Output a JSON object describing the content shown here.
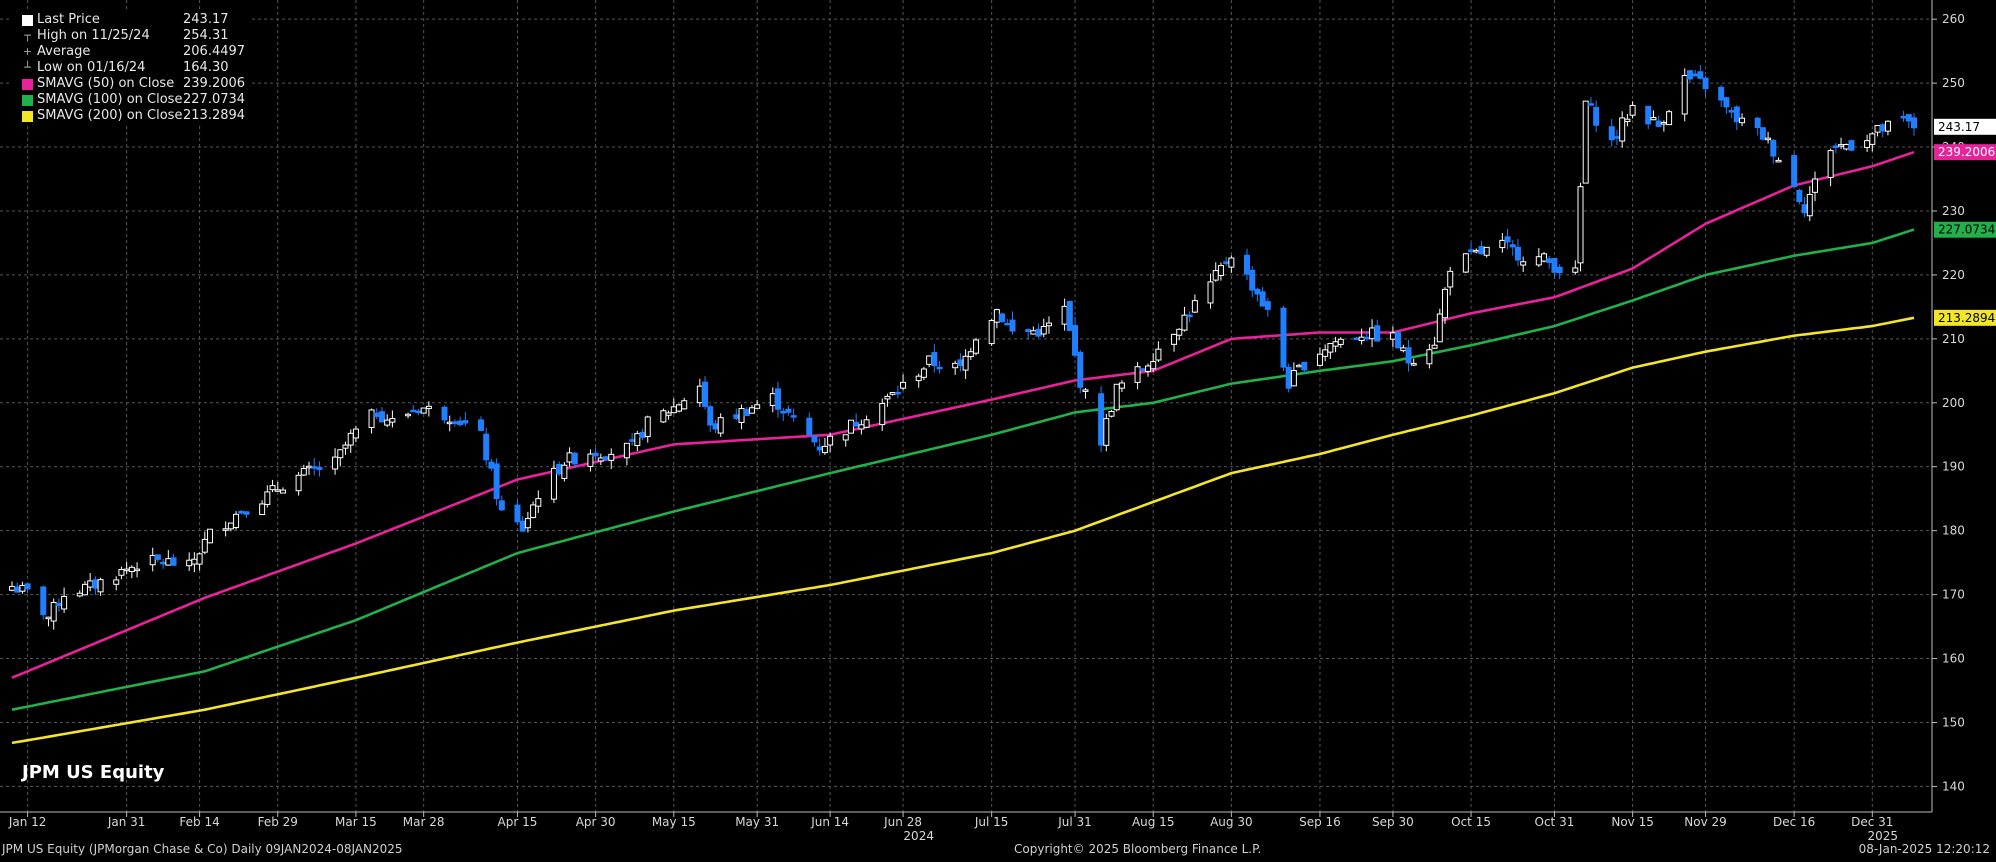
{
  "chart_data": {
    "type": "candlestick",
    "ticker_label": "JPM US Equity",
    "x_tick_labels": [
      "Jan 12",
      "Jan 31",
      "Feb 14",
      "Feb 29",
      "Mar 15",
      "Mar 28",
      "Apr 15",
      "Apr 30",
      "May 15",
      "May 31",
      "Jun 14",
      "Jun 28",
      "Jul 15",
      "Jul 31",
      "Aug 15",
      "Aug 30",
      "Sep 16",
      "Sep 30",
      "Oct 15",
      "Oct 31",
      "Nov 15",
      "Nov 29",
      "Dec 16",
      "Dec 31"
    ],
    "x_tick_dates": [
      "2024-01-12",
      "2024-01-31",
      "2024-02-14",
      "2024-02-29",
      "2024-03-15",
      "2024-03-28",
      "2024-04-15",
      "2024-04-30",
      "2024-05-15",
      "2024-05-31",
      "2024-06-14",
      "2024-06-28",
      "2024-07-15",
      "2024-07-31",
      "2024-08-15",
      "2024-08-30",
      "2024-09-16",
      "2024-09-30",
      "2024-10-15",
      "2024-10-31",
      "2024-11-15",
      "2024-11-29",
      "2024-12-16",
      "2024-12-31"
    ],
    "year_labels": [
      {
        "label": "2024",
        "date": "2024-07-01"
      },
      {
        "label": "2025",
        "date": "2025-01-02"
      }
    ],
    "x_range": [
      "2024-01-09",
      "2025-01-08"
    ],
    "ylim": [
      136,
      263
    ],
    "y_ticks": [
      140,
      150,
      160,
      170,
      180,
      190,
      200,
      210,
      220,
      230,
      240,
      250,
      260
    ],
    "grid": true,
    "legend": {
      "position": "top-left",
      "entries": [
        {
          "name": "Last Price",
          "value": "243.17",
          "color": "#ffffff",
          "marker": "square"
        },
        {
          "name": "High on 11/25/24",
          "value": "254.31",
          "marker": "high"
        },
        {
          "name": "Average",
          "value": "206.4497",
          "marker": "average"
        },
        {
          "name": "Low on 01/16/24",
          "value": "164.30",
          "marker": "low"
        },
        {
          "name": "SMAVG (50)  on Close",
          "value": "239.2006",
          "color": "#e8229b",
          "marker": "square"
        },
        {
          "name": "SMAVG (100)  on Close",
          "value": "227.0734",
          "color": "#21b04b",
          "marker": "square"
        },
        {
          "name": "SMAVG (200)  on Close",
          "value": "213.2894",
          "color": "#f3e629",
          "marker": "square"
        }
      ]
    },
    "close_series": [
      [
        "2024-01-09",
        171.3
      ],
      [
        "2024-01-11",
        170.6
      ],
      [
        "2024-01-12",
        170.3
      ],
      [
        "2024-01-16",
        166.5
      ],
      [
        "2024-01-19",
        170.2
      ],
      [
        "2024-01-24",
        171.2
      ],
      [
        "2024-01-29",
        173.2
      ],
      [
        "2024-02-02",
        174.8
      ],
      [
        "2024-02-07",
        175.3
      ],
      [
        "2024-02-12",
        174.3
      ],
      [
        "2024-02-16",
        179.5
      ],
      [
        "2024-02-22",
        183.2
      ],
      [
        "2024-02-27",
        185.5
      ],
      [
        "2024-03-01",
        187.3
      ],
      [
        "2024-03-06",
        189.2
      ],
      [
        "2024-03-11",
        190.6
      ],
      [
        "2024-03-14",
        194.6
      ],
      [
        "2024-03-19",
        198.6
      ],
      [
        "2024-03-22",
        197.0
      ],
      [
        "2024-03-27",
        199.4
      ],
      [
        "2024-04-01",
        198.2
      ],
      [
        "2024-04-03",
        197.8
      ],
      [
        "2024-04-08",
        194.7
      ],
      [
        "2024-04-12",
        182.8
      ],
      [
        "2024-04-16",
        180.3
      ],
      [
        "2024-04-19",
        185.8
      ],
      [
        "2024-04-24",
        190.8
      ],
      [
        "2024-04-29",
        192.4
      ],
      [
        "2024-05-02",
        192.2
      ],
      [
        "2024-05-07",
        193.0
      ],
      [
        "2024-05-10",
        196.8
      ],
      [
        "2024-05-15",
        199.3
      ],
      [
        "2024-05-20",
        202.8
      ],
      [
        "2024-05-22",
        196.0
      ],
      [
        "2024-05-28",
        198.6
      ],
      [
        "2024-06-03",
        200.8
      ],
      [
        "2024-06-07",
        197.2
      ],
      [
        "2024-06-12",
        193.2
      ],
      [
        "2024-06-17",
        195.9
      ],
      [
        "2024-06-24",
        199.9
      ],
      [
        "2024-06-28",
        202.6
      ],
      [
        "2024-07-03",
        206.4
      ],
      [
        "2024-07-09",
        205.3
      ],
      [
        "2024-07-12",
        210.6
      ],
      [
        "2024-07-16",
        214.6
      ],
      [
        "2024-07-19",
        211.0
      ],
      [
        "2024-07-25",
        211.3
      ],
      [
        "2024-07-29",
        214.6
      ],
      [
        "2024-08-01",
        203.4
      ],
      [
        "2024-08-05",
        194.2
      ],
      [
        "2024-08-08",
        202.2
      ],
      [
        "2024-08-13",
        205.4
      ],
      [
        "2024-08-16",
        208.6
      ],
      [
        "2024-08-21",
        213.4
      ],
      [
        "2024-08-26",
        218.4
      ],
      [
        "2024-08-30",
        223.4
      ],
      [
        "2024-09-04",
        217.2
      ],
      [
        "2024-09-06",
        214.0
      ],
      [
        "2024-09-10",
        203.0
      ],
      [
        "2024-09-13",
        206.2
      ],
      [
        "2024-09-18",
        209.3
      ],
      [
        "2024-09-24",
        210.9
      ],
      [
        "2024-09-30",
        210.1
      ],
      [
        "2024-10-03",
        206.6
      ],
      [
        "2024-10-08",
        209.7
      ],
      [
        "2024-10-11",
        221.4
      ],
      [
        "2024-10-16",
        223.2
      ],
      [
        "2024-10-21",
        224.6
      ],
      [
        "2024-10-25",
        223.0
      ],
      [
        "2024-10-29",
        222.4
      ],
      [
        "2024-11-01",
        221.0
      ],
      [
        "2024-11-04",
        220.2
      ],
      [
        "2024-11-06",
        247.0
      ],
      [
        "2024-11-11",
        240.7
      ],
      [
        "2024-11-15",
        246.4
      ],
      [
        "2024-11-20",
        243.3
      ],
      [
        "2024-11-25",
        250.8
      ],
      [
        "2024-11-29",
        249.7
      ],
      [
        "2024-12-04",
        245.0
      ],
      [
        "2024-12-10",
        241.8
      ],
      [
        "2024-12-13",
        238.4
      ],
      [
        "2024-12-18",
        230.7
      ],
      [
        "2024-12-23",
        240.0
      ],
      [
        "2024-12-27",
        240.5
      ],
      [
        "2025-01-02",
        242.8
      ],
      [
        "2025-01-06",
        244.0
      ],
      [
        "2025-01-08",
        243.2
      ]
    ],
    "sma50": [
      [
        "2024-01-09",
        157.0
      ],
      [
        "2024-02-15",
        169.5
      ],
      [
        "2024-03-15",
        178.0
      ],
      [
        "2024-04-15",
        188.0
      ],
      [
        "2024-05-15",
        193.5
      ],
      [
        "2024-06-14",
        195.0
      ],
      [
        "2024-07-15",
        200.5
      ],
      [
        "2024-07-31",
        203.5
      ],
      [
        "2024-08-15",
        205.0
      ],
      [
        "2024-08-30",
        210.0
      ],
      [
        "2024-09-16",
        211.0
      ],
      [
        "2024-09-30",
        211.0
      ],
      [
        "2024-10-15",
        214.0
      ],
      [
        "2024-10-31",
        216.5
      ],
      [
        "2024-11-15",
        221.0
      ],
      [
        "2024-11-29",
        228.0
      ],
      [
        "2024-12-16",
        234.0
      ],
      [
        "2024-12-31",
        237.0
      ],
      [
        "2025-01-08",
        239.2
      ]
    ],
    "sma100": [
      [
        "2024-01-09",
        152.0
      ],
      [
        "2024-02-15",
        158.0
      ],
      [
        "2024-03-15",
        166.0
      ],
      [
        "2024-04-15",
        176.5
      ],
      [
        "2024-05-15",
        183.0
      ],
      [
        "2024-06-14",
        189.0
      ],
      [
        "2024-07-15",
        195.0
      ],
      [
        "2024-07-31",
        198.5
      ],
      [
        "2024-08-15",
        200.0
      ],
      [
        "2024-08-30",
        203.0
      ],
      [
        "2024-09-16",
        205.0
      ],
      [
        "2024-09-30",
        206.5
      ],
      [
        "2024-10-15",
        209.0
      ],
      [
        "2024-10-31",
        212.0
      ],
      [
        "2024-11-15",
        216.0
      ],
      [
        "2024-11-29",
        220.0
      ],
      [
        "2024-12-16",
        223.0
      ],
      [
        "2024-12-31",
        225.0
      ],
      [
        "2025-01-08",
        227.1
      ]
    ],
    "sma200": [
      [
        "2024-01-09",
        146.8
      ],
      [
        "2024-02-15",
        152.0
      ],
      [
        "2024-03-15",
        157.0
      ],
      [
        "2024-04-15",
        162.5
      ],
      [
        "2024-05-15",
        167.5
      ],
      [
        "2024-06-14",
        171.5
      ],
      [
        "2024-07-15",
        176.5
      ],
      [
        "2024-07-31",
        180.0
      ],
      [
        "2024-08-15",
        184.5
      ],
      [
        "2024-08-30",
        189.0
      ],
      [
        "2024-09-16",
        192.0
      ],
      [
        "2024-09-30",
        195.0
      ],
      [
        "2024-10-15",
        198.0
      ],
      [
        "2024-10-31",
        201.5
      ],
      [
        "2024-11-15",
        205.5
      ],
      [
        "2024-11-29",
        208.0
      ],
      [
        "2024-12-16",
        210.5
      ],
      [
        "2024-12-31",
        212.0
      ],
      [
        "2025-01-08",
        213.3
      ]
    ],
    "right_tags": [
      {
        "label": "243.17",
        "value": 243.17,
        "bg": "#ffffff",
        "fg": "#000000"
      },
      {
        "label": "239.2006",
        "value": 239.2006,
        "bg": "#e8229b",
        "fg": "#ffffff"
      },
      {
        "label": "227.0734",
        "value": 227.0734,
        "bg": "#21b04b",
        "fg": "#000000"
      },
      {
        "label": "213.2894",
        "value": 213.2894,
        "bg": "#f3e629",
        "fg": "#000000"
      }
    ],
    "colors": {
      "up": "#ffffff",
      "down": "#1f7fff",
      "grid": "#555555",
      "sma50": "#e8229b",
      "sma100": "#21b04b",
      "sma200": "#f3e629"
    }
  },
  "footer": {
    "left": "JPM US Equity (JPMorgan Chase & Co)  Daily 09JAN2024-08JAN2025",
    "center": "Copyright© 2025 Bloomberg Finance L.P.",
    "right": "08-Jan-2025 12:20:12"
  }
}
